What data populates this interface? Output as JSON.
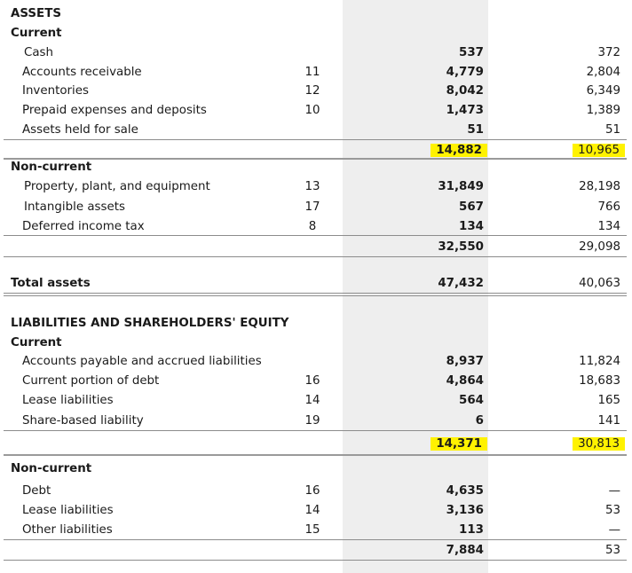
{
  "assets": {
    "heading": "ASSETS",
    "current_label": "Current",
    "current_rows": [
      {
        "label": "Cash",
        "note": "",
        "current": "537",
        "prior": "372"
      },
      {
        "label": "Accounts receivable",
        "note": "11",
        "current": "4,779",
        "prior": "2,804"
      },
      {
        "label": "Inventories",
        "note": "12",
        "current": "8,042",
        "prior": "6,349"
      },
      {
        "label": "Prepaid expenses and deposits",
        "note": "10",
        "current": "1,473",
        "prior": "1,389"
      },
      {
        "label": "Assets held for sale",
        "note": "",
        "current": "51",
        "prior": "51"
      }
    ],
    "current_total": {
      "current": "14,882",
      "prior": "10,965"
    },
    "noncurrent_label": "Non-current",
    "noncurrent_rows": [
      {
        "label": "Property, plant, and equipment",
        "note": "13",
        "current": "31,849",
        "prior": "28,198"
      },
      {
        "label": "Intangible assets",
        "note": "17",
        "current": "567",
        "prior": "766"
      },
      {
        "label": "Deferred income tax",
        "note": "8",
        "current": "134",
        "prior": "134"
      }
    ],
    "noncurrent_total": {
      "current": "32,550",
      "prior": "29,098"
    },
    "total": {
      "label": "Total assets",
      "current": "47,432",
      "prior": "40,063"
    }
  },
  "liabilities": {
    "heading": "LIABILITIES AND SHAREHOLDERS' EQUITY",
    "current_label": "Current",
    "current_rows": [
      {
        "label": "Accounts payable and accrued liabilities",
        "note": "",
        "current": "8,937",
        "prior": "11,824"
      },
      {
        "label": "Current portion of debt",
        "note": "16",
        "current": "4,864",
        "prior": "18,683"
      },
      {
        "label": "Lease liabilities",
        "note": "14",
        "current": "564",
        "prior": "165"
      },
      {
        "label": "Share-based liability",
        "note": "19",
        "current": "6",
        "prior": "141"
      }
    ],
    "current_total": {
      "current": "14,371",
      "prior": "30,813"
    },
    "noncurrent_label": "Non-current",
    "noncurrent_rows": [
      {
        "label": "Debt",
        "note": "16",
        "current": "4,635",
        "prior": "—"
      },
      {
        "label": "Lease liabilities",
        "note": "14",
        "current": "3,136",
        "prior": "53"
      },
      {
        "label": "Other liabilities",
        "note": "15",
        "current": "113",
        "prior": "—"
      }
    ],
    "noncurrent_total": {
      "current": "7,884",
      "prior": "53"
    }
  },
  "colors": {
    "highlight": "#fff200",
    "shade": "#eeeeee"
  }
}
